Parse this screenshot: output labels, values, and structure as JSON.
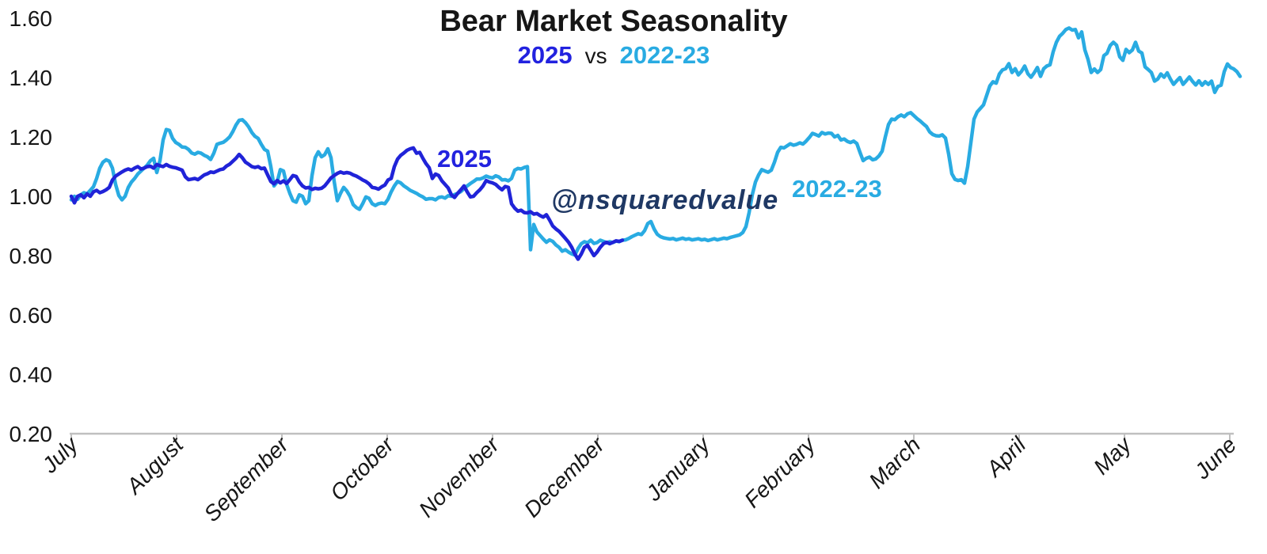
{
  "title": "Bear Market Seasonality",
  "subtitle": {
    "series1": "2025",
    "separator": "vs",
    "series2": "2022-23"
  },
  "watermark": "@nsquaredvalue",
  "annotations": {
    "series1_inline_label": "2025",
    "series2_inline_label": "2022-23"
  },
  "colors": {
    "blue_2025": "#2023D8",
    "blue_2025_text": "#2222DF",
    "cyan_2022_23": "#29ABE2",
    "watermark_navy": "#1F3864",
    "axis_line": "#BFBFBF",
    "text": "#161616"
  },
  "chart_data": {
    "type": "line",
    "title": "Bear Market Seasonality",
    "subtitle": "2025 vs 2022-23",
    "grid": false,
    "legend_position": "inline-labels",
    "x_axis": {
      "unit": "month",
      "tick_labels": [
        "July",
        "August",
        "September",
        "October",
        "November",
        "December",
        "January",
        "February",
        "March",
        "April",
        "May",
        "June"
      ],
      "label_style": "italic, rotated 45deg"
    },
    "y_axis": {
      "min": 0.2,
      "max": 1.6,
      "ticks": [
        1.6,
        1.4,
        1.2,
        1.0,
        0.8,
        0.6,
        0.4,
        0.2
      ],
      "decimals": 2
    },
    "series": [
      {
        "name": "2025",
        "color_key": "blue_2025",
        "x_start_month": 0,
        "x_step_months": 0.030075,
        "values": [
          1.0,
          0.978,
          1.0,
          1.005,
          0.995,
          1.008,
          1.0,
          1.015,
          1.02,
          1.012,
          1.016,
          1.022,
          1.03,
          1.055,
          1.068,
          1.075,
          1.082,
          1.088,
          1.092,
          1.088,
          1.095,
          1.1,
          1.092,
          1.095,
          1.1,
          1.101,
          1.095,
          1.107,
          1.103,
          1.1,
          1.107,
          1.101,
          1.098,
          1.096,
          1.092,
          1.088,
          1.066,
          1.056,
          1.058,
          1.06,
          1.056,
          1.064,
          1.072,
          1.076,
          1.082,
          1.08,
          1.085,
          1.09,
          1.092,
          1.102,
          1.108,
          1.118,
          1.128,
          1.141,
          1.13,
          1.115,
          1.108,
          1.1,
          1.097,
          1.1,
          1.093,
          1.095,
          1.072,
          1.05,
          1.042,
          1.053,
          1.045,
          1.052,
          1.043,
          1.056,
          1.07,
          1.067,
          1.048,
          1.035,
          1.028,
          1.03,
          1.023,
          1.027,
          1.025,
          1.027,
          1.035,
          1.048,
          1.062,
          1.07,
          1.077,
          1.082,
          1.078,
          1.08,
          1.078,
          1.072,
          1.068,
          1.062,
          1.055,
          1.05,
          1.042,
          1.03,
          1.028,
          1.024,
          1.032,
          1.038,
          1.055,
          1.06,
          1.1,
          1.125,
          1.138,
          1.146,
          1.155,
          1.16,
          1.163,
          1.145,
          1.148,
          1.128,
          1.11,
          1.096,
          1.06,
          1.075,
          1.07,
          1.052,
          1.04,
          1.028,
          1.005,
          0.996,
          1.01,
          1.022,
          1.035,
          1.015,
          0.998,
          1.0,
          1.012,
          1.022,
          1.035,
          1.053,
          1.048,
          1.045,
          1.04,
          1.03,
          1.022,
          1.033,
          1.03,
          0.975,
          0.96,
          0.95,
          0.953,
          0.945,
          0.944,
          0.948,
          0.94,
          0.942,
          0.935,
          0.93,
          0.938,
          0.92,
          0.9,
          0.89,
          0.882,
          0.87,
          0.858,
          0.845,
          0.828,
          0.805,
          0.788,
          0.805,
          0.828,
          0.835,
          0.818,
          0.8,
          0.812,
          0.828,
          0.84,
          0.845,
          0.84,
          0.845,
          0.85,
          0.848,
          0.852
        ]
      },
      {
        "name": "2022-23",
        "color_key": "cyan_2022_23",
        "x_start_month": 0,
        "x_step_months": 0.030075,
        "values": [
          0.988,
          1.0,
          0.99,
          1.005,
          1.012,
          1.008,
          1.02,
          1.032,
          1.06,
          1.095,
          1.115,
          1.123,
          1.118,
          1.095,
          1.04,
          1.003,
          0.988,
          1.0,
          1.03,
          1.048,
          1.06,
          1.075,
          1.085,
          1.095,
          1.105,
          1.12,
          1.128,
          1.08,
          1.12,
          1.19,
          1.225,
          1.222,
          1.195,
          1.181,
          1.175,
          1.166,
          1.165,
          1.158,
          1.146,
          1.142,
          1.148,
          1.145,
          1.138,
          1.133,
          1.124,
          1.145,
          1.175,
          1.179,
          1.182,
          1.19,
          1.2,
          1.218,
          1.24,
          1.256,
          1.258,
          1.248,
          1.234,
          1.215,
          1.202,
          1.195,
          1.175,
          1.158,
          1.152,
          1.1,
          1.035,
          1.048,
          1.09,
          1.085,
          1.04,
          1.01,
          0.985,
          0.98,
          1.005,
          1.0,
          0.975,
          0.985,
          1.07,
          1.13,
          1.15,
          1.133,
          1.14,
          1.16,
          1.13,
          1.05,
          0.985,
          1.01,
          1.03,
          1.018,
          1.0,
          0.972,
          0.962,
          0.956,
          0.975,
          0.998,
          0.993,
          0.975,
          0.969,
          0.975,
          0.977,
          0.975,
          0.99,
          1.015,
          1.035,
          1.05,
          1.045,
          1.035,
          1.028,
          1.02,
          1.015,
          1.01,
          1.003,
          0.998,
          0.99,
          0.992,
          0.992,
          0.988,
          0.996,
          0.998,
          0.994,
          1.002,
          1.0,
          1.006,
          1.01,
          1.016,
          1.026,
          1.035,
          1.043,
          1.05,
          1.058,
          1.058,
          1.062,
          1.068,
          1.064,
          1.062,
          1.069,
          1.065,
          1.055,
          1.056,
          1.052,
          1.06,
          1.088,
          1.094,
          1.092,
          1.097,
          1.1,
          0.82,
          0.905,
          0.88,
          0.868,
          0.856,
          0.845,
          0.853,
          0.848,
          0.836,
          0.828,
          0.815,
          0.82,
          0.812,
          0.806,
          0.802,
          0.824,
          0.84,
          0.847,
          0.843,
          0.852,
          0.841,
          0.844,
          0.852,
          0.848,
          0.844,
          0.847,
          0.844,
          0.849,
          0.847,
          0.852,
          0.853,
          0.858,
          0.864,
          0.869,
          0.874,
          0.871,
          0.884,
          0.908,
          0.915,
          0.89,
          0.872,
          0.864,
          0.86,
          0.858,
          0.856,
          0.858,
          0.853,
          0.856,
          0.859,
          0.855,
          0.857,
          0.853,
          0.855,
          0.857,
          0.853,
          0.855,
          0.851,
          0.854,
          0.857,
          0.853,
          0.856,
          0.859,
          0.857,
          0.861,
          0.864,
          0.867,
          0.87,
          0.878,
          0.898,
          0.945,
          1.005,
          1.048,
          1.072,
          1.09,
          1.085,
          1.081,
          1.088,
          1.115,
          1.148,
          1.165,
          1.163,
          1.17,
          1.177,
          1.172,
          1.175,
          1.18,
          1.176,
          1.186,
          1.198,
          1.212,
          1.208,
          1.203,
          1.215,
          1.21,
          1.213,
          1.212,
          1.2,
          1.205,
          1.19,
          1.193,
          1.185,
          1.181,
          1.186,
          1.178,
          1.148,
          1.12,
          1.128,
          1.132,
          1.123,
          1.126,
          1.136,
          1.152,
          1.2,
          1.242,
          1.26,
          1.258,
          1.268,
          1.274,
          1.268,
          1.278,
          1.282,
          1.272,
          1.262,
          1.254,
          1.244,
          1.235,
          1.217,
          1.208,
          1.204,
          1.203,
          1.207,
          1.196,
          1.142,
          1.076,
          1.057,
          1.053,
          1.056,
          1.044,
          1.1,
          1.18,
          1.26,
          1.284,
          1.296,
          1.308,
          1.34,
          1.372,
          1.386,
          1.381,
          1.412,
          1.426,
          1.43,
          1.447,
          1.417,
          1.43,
          1.409,
          1.421,
          1.439,
          1.413,
          1.401,
          1.416,
          1.434,
          1.404,
          1.43,
          1.439,
          1.443,
          1.487,
          1.519,
          1.539,
          1.549,
          1.562,
          1.567,
          1.56,
          1.562,
          1.534,
          1.554,
          1.493,
          1.461,
          1.417,
          1.429,
          1.417,
          1.427,
          1.474,
          1.482,
          1.508,
          1.519,
          1.509,
          1.47,
          1.458,
          1.495,
          1.484,
          1.493,
          1.519,
          1.489,
          1.483,
          1.436,
          1.427,
          1.417,
          1.388,
          1.395,
          1.412,
          1.401,
          1.416,
          1.395,
          1.377,
          1.389,
          1.4,
          1.377,
          1.389,
          1.402,
          1.387,
          1.375,
          1.389,
          1.374,
          1.386,
          1.377,
          1.388,
          1.35,
          1.37,
          1.374,
          1.42,
          1.446,
          1.434,
          1.429,
          1.42,
          1.404
        ]
      }
    ]
  }
}
